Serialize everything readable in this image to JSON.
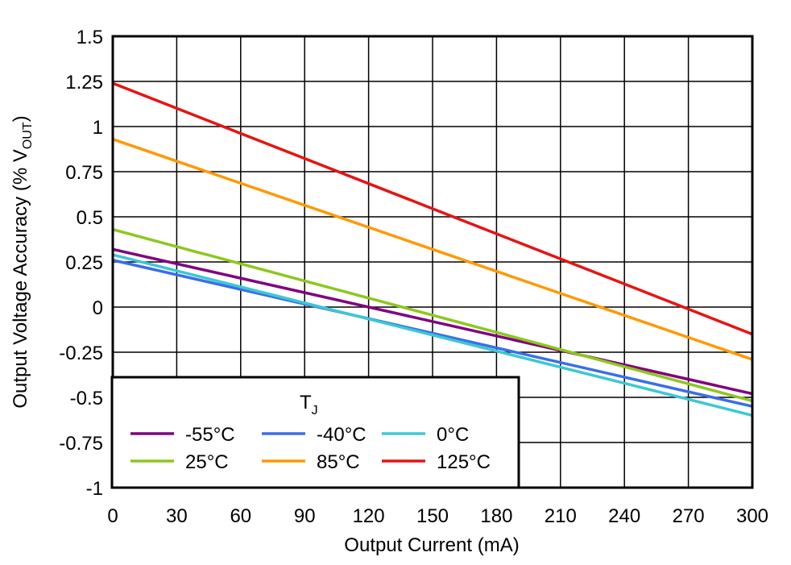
{
  "chart_data": {
    "type": "line",
    "xlabel": "Output Current (mA)",
    "ylabel": {
      "prefix": "Output Voltage Accuracy (% V",
      "sub": "OUT",
      "suffix": ")"
    },
    "xlim": [
      0,
      300
    ],
    "ylim": [
      -1,
      1.5
    ],
    "x_ticks": [
      0,
      30,
      60,
      90,
      120,
      150,
      180,
      210,
      240,
      270,
      300
    ],
    "y_ticks": [
      1.5,
      1.25,
      1,
      0.75,
      0.5,
      0.25,
      0,
      -0.25,
      -0.5,
      -0.75,
      -1
    ],
    "grid": true,
    "legend": {
      "title": "T",
      "title_sub": "J",
      "placement": "bottom-left",
      "columns": 3
    },
    "series": [
      {
        "name": "-55°C",
        "color": "#800080",
        "x": [
          0,
          300
        ],
        "y": [
          0.32,
          -0.48
        ]
      },
      {
        "name": "-40°C",
        "color": "#3a6ee8",
        "x": [
          0,
          300
        ],
        "y": [
          0.26,
          -0.55
        ]
      },
      {
        "name": "0°C",
        "color": "#3cc8d2",
        "x": [
          0,
          300
        ],
        "y": [
          0.29,
          -0.6
        ]
      },
      {
        "name": "25°C",
        "color": "#8cc81e",
        "x": [
          0,
          300
        ],
        "y": [
          0.43,
          -0.52
        ]
      },
      {
        "name": "85°C",
        "color": "#ff9900",
        "x": [
          0,
          300
        ],
        "y": [
          0.93,
          -0.29
        ]
      },
      {
        "name": "125°C",
        "color": "#e61414",
        "x": [
          0,
          300
        ],
        "y": [
          1.24,
          -0.15
        ]
      }
    ]
  }
}
